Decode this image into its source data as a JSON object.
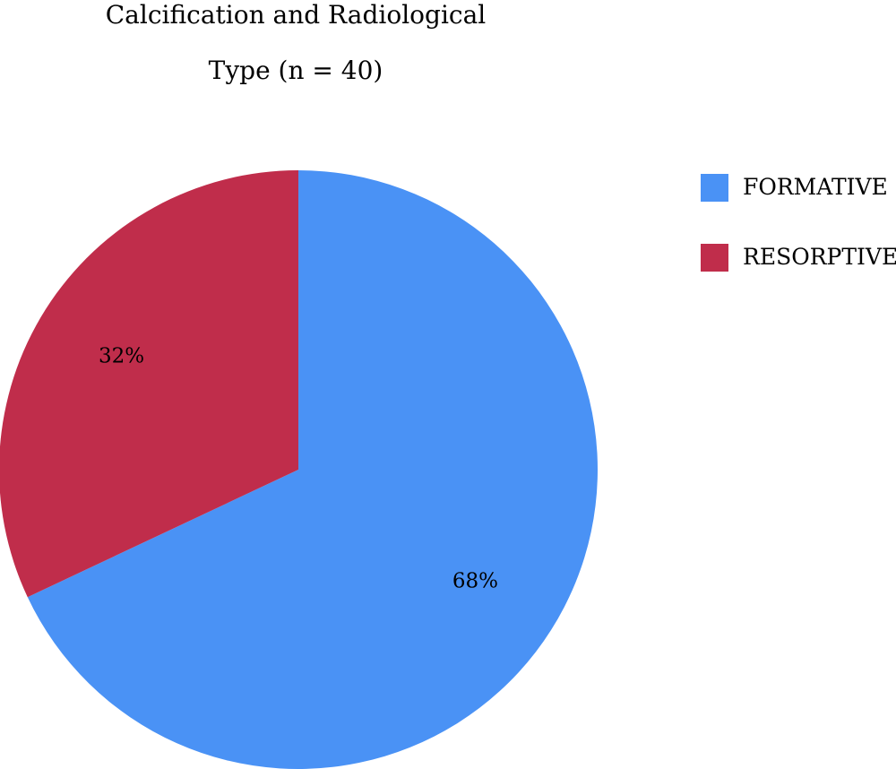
{
  "chart_data": {
    "type": "pie",
    "title_lines": [
      "Calcification and  Radiological",
      "Type (n = 40)"
    ],
    "series": [
      {
        "slices": [
          {
            "label": "FORMATIVE",
            "value": 68,
            "display": "68%",
            "color": "#4a92f5"
          },
          {
            "label": "RESORPTIVE",
            "value": 32,
            "display": "32%",
            "color": "#c02d4b"
          }
        ]
      }
    ],
    "start_angle": "12 o'clock",
    "direction": "clockwise",
    "legend_position": "right-top"
  }
}
